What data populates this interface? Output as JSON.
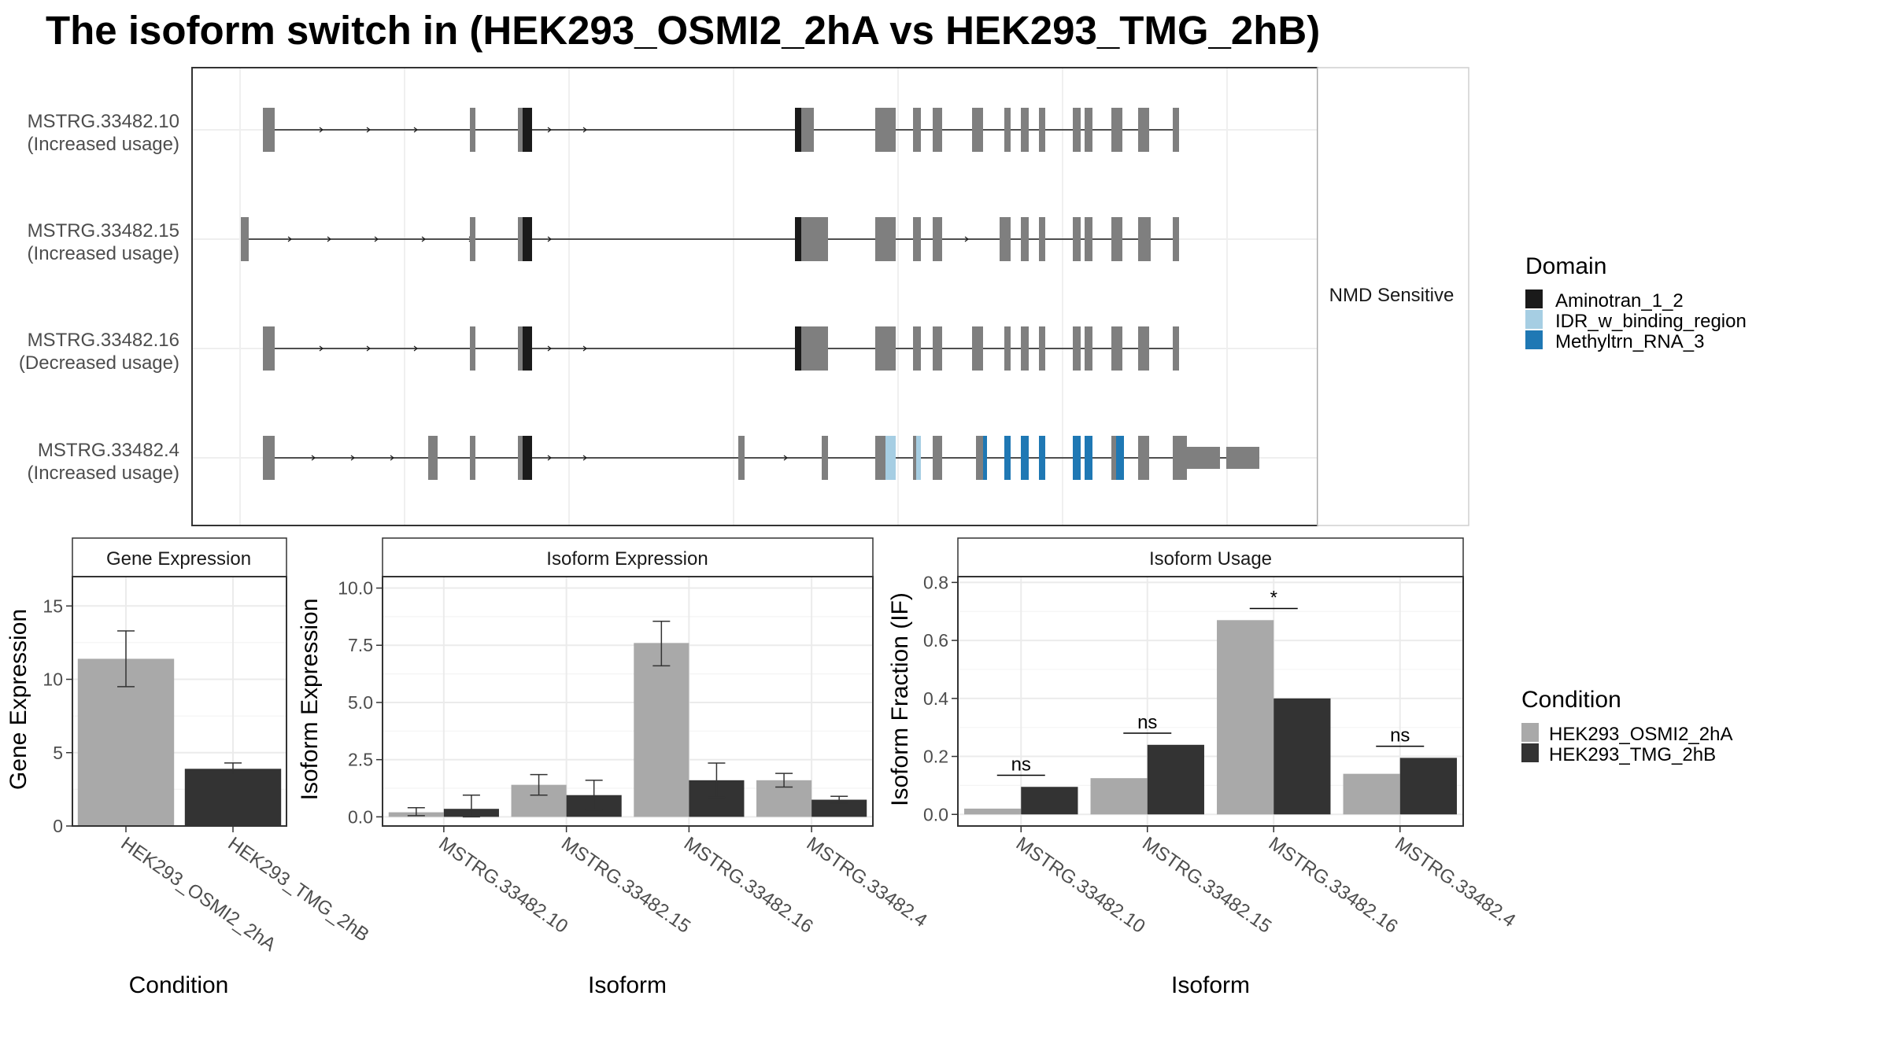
{
  "title": "The isoform switch in  (HEK293_OSMI2_2hA vs HEK293_TMG_2hB)",
  "colors": {
    "cond_a": "#A9A9A9",
    "cond_b": "#333333",
    "domain_aminotran": "#1A1A1A",
    "domain_idr": "#A6CEE3",
    "domain_methyltrn": "#1F78B4",
    "noncoding": "#7F7F7F",
    "grid": "#EBEBEB"
  },
  "structure": {
    "strip_label": "NMD Sensitive",
    "isoforms": [
      {
        "name": "MSTRG.33482.10",
        "usage": "(Increased usage)"
      },
      {
        "name": "MSTRG.33482.15",
        "usage": "(Increased usage)"
      },
      {
        "name": "MSTRG.33482.16",
        "usage": "(Decreased usage)"
      },
      {
        "name": "MSTRG.33482.4",
        "usage": "(Increased usage)"
      }
    ]
  },
  "legends": {
    "domain_title": "Domain",
    "domain_items": [
      {
        "label": "Aminotran_1_2",
        "color": "#1A1A1A"
      },
      {
        "label": "IDR_w_binding_region",
        "color": "#A6CEE3"
      },
      {
        "label": "Methyltrn_RNA_3",
        "color": "#1F78B4"
      }
    ],
    "condition_title": "Condition",
    "condition_items": [
      {
        "label": "HEK293_OSMI2_2hA",
        "color": "#A9A9A9"
      },
      {
        "label": "HEK293_TMG_2hB",
        "color": "#333333"
      }
    ]
  },
  "chart_data": [
    {
      "type": "bar",
      "title": "Gene Expression",
      "xlabel": "Condition",
      "ylabel": "Gene Expression",
      "categories": [
        "HEK293_OSMI2_2hA",
        "HEK293_TMG_2hB"
      ],
      "values": [
        11.4,
        3.9
      ],
      "errors": [
        [
          9.5,
          13.3
        ],
        [
          3.5,
          4.3
        ]
      ],
      "ylim": [
        0,
        17
      ],
      "yticks": [
        0,
        5,
        10,
        15
      ],
      "ytick_labels": [
        "0",
        "5",
        "10",
        "15"
      ],
      "grid": true
    },
    {
      "type": "bar",
      "title": "Isoform Expression",
      "xlabel": "Isoform",
      "ylabel": "Isoform Expression",
      "categories": [
        "MSTRG.33482.10",
        "MSTRG.33482.15",
        "MSTRG.33482.16",
        "MSTRG.33482.4"
      ],
      "series": [
        {
          "name": "HEK293_OSMI2_2hA",
          "values": [
            0.2,
            1.4,
            7.6,
            1.6
          ],
          "errors": [
            [
              0.05,
              0.4
            ],
            [
              0.95,
              1.85
            ],
            [
              6.6,
              8.55
            ],
            [
              1.3,
              1.9
            ]
          ]
        },
        {
          "name": "HEK293_TMG_2hB",
          "values": [
            0.35,
            0.95,
            1.6,
            0.75
          ],
          "errors": [
            [
              0.0,
              0.95
            ],
            [
              0.3,
              1.6
            ],
            [
              0.85,
              2.35
            ],
            [
              0.6,
              0.9
            ]
          ]
        }
      ],
      "ylim": [
        -0.4,
        10.5
      ],
      "yticks": [
        0,
        2.5,
        5,
        7.5,
        10
      ],
      "ytick_labels": [
        "0.0",
        "2.5",
        "5.0",
        "7.5",
        "10.0"
      ],
      "grid": true
    },
    {
      "type": "bar",
      "title": "Isoform Usage",
      "xlabel": "Isoform",
      "ylabel": "Isoform Fraction (IF)",
      "categories": [
        "MSTRG.33482.10",
        "MSTRG.33482.15",
        "MSTRG.33482.16",
        "MSTRG.33482.4"
      ],
      "series": [
        {
          "name": "HEK293_OSMI2_2hA",
          "values": [
            0.02,
            0.125,
            0.67,
            0.14
          ]
        },
        {
          "name": "HEK293_TMG_2hB",
          "values": [
            0.095,
            0.24,
            0.4,
            0.195
          ]
        }
      ],
      "significance": [
        "ns",
        "ns",
        "*",
        "ns"
      ],
      "ylim": [
        -0.04,
        0.82
      ],
      "yticks": [
        0,
        0.2,
        0.4,
        0.6,
        0.8
      ],
      "ytick_labels": [
        "0.0",
        "0.2",
        "0.4",
        "0.6",
        "0.8"
      ],
      "grid": true
    }
  ]
}
